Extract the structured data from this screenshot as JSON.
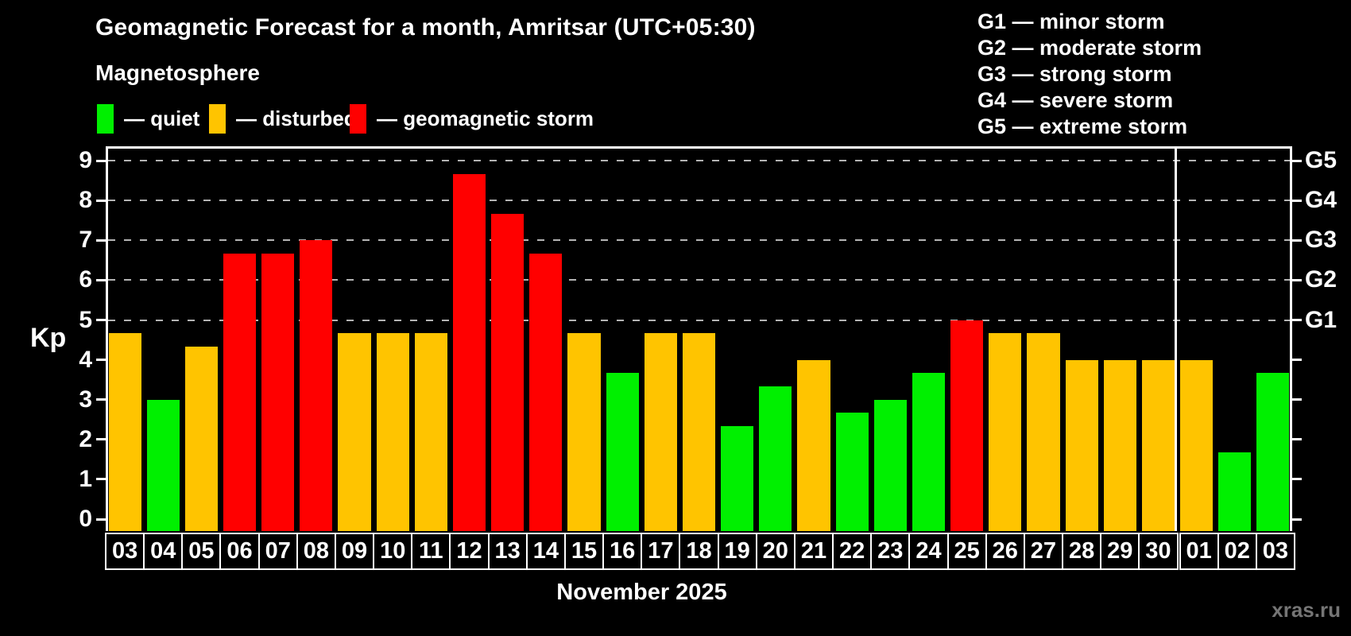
{
  "title": "Geomagnetic Forecast for a month, Amritsar (UTC+05:30)",
  "subtitle": "Magnetosphere",
  "legend": {
    "quiet": "— quiet",
    "disturbed": "— disturbed",
    "storm": "— geomagnetic storm"
  },
  "g_scale_legend": [
    "G1 — minor storm",
    "G2 — moderate storm",
    "G3 — strong storm",
    "G4 — severe storm",
    "G5 — extreme storm"
  ],
  "colors": {
    "quiet": "#00f000",
    "disturbed": "#ffc400",
    "storm": "#ff0000",
    "background": "#000000",
    "grid": "#b4b4b4",
    "axis": "#ffffff",
    "watermark": "#757575"
  },
  "axes": {
    "y_label": "Kp",
    "y_ticks": [
      0,
      1,
      2,
      3,
      4,
      5,
      6,
      7,
      8,
      9
    ],
    "right_labels": [
      {
        "label": "G1",
        "kp": 5
      },
      {
        "label": "G2",
        "kp": 6
      },
      {
        "label": "G3",
        "kp": 7
      },
      {
        "label": "G4",
        "kp": 8
      },
      {
        "label": "G5",
        "kp": 9
      }
    ],
    "x_label": "November 2025"
  },
  "watermark": "xras.ru",
  "chart_data": {
    "type": "bar",
    "title": "Geomagnetic Forecast for a month, Amritsar (UTC+05:30)",
    "xlabel": "November 2025",
    "ylabel": "Kp",
    "ylim": [
      -0.32,
      9.35
    ],
    "grid": "dashed horizontal at G-storm levels",
    "gridlines_at": [
      5,
      6,
      7,
      8,
      9
    ],
    "categories": [
      "03",
      "04",
      "05",
      "06",
      "07",
      "08",
      "09",
      "10",
      "11",
      "12",
      "13",
      "14",
      "15",
      "16",
      "17",
      "18",
      "19",
      "20",
      "21",
      "22",
      "23",
      "24",
      "25",
      "26",
      "27",
      "28",
      "29",
      "30",
      "01",
      "02",
      "03"
    ],
    "values": [
      4.67,
      3,
      4.33,
      6.67,
      6.67,
      7,
      4.67,
      4.67,
      4.67,
      8.67,
      7.67,
      6.67,
      4.67,
      3.67,
      4.67,
      4.67,
      2.33,
      3.33,
      4,
      2.67,
      3,
      3.67,
      5,
      4.67,
      4.67,
      4,
      4,
      4,
      4,
      1.67,
      3.67
    ],
    "statuses": [
      "disturbed",
      "quiet",
      "disturbed",
      "storm",
      "storm",
      "storm",
      "disturbed",
      "disturbed",
      "disturbed",
      "storm",
      "storm",
      "storm",
      "disturbed",
      "quiet",
      "disturbed",
      "disturbed",
      "quiet",
      "quiet",
      "disturbed",
      "quiet",
      "quiet",
      "quiet",
      "storm",
      "disturbed",
      "disturbed",
      "disturbed",
      "disturbed",
      "disturbed",
      "disturbed",
      "quiet",
      "quiet"
    ],
    "month_separator_after_index": 27,
    "months": {
      "november_dates": 28,
      "december_dates": 3
    }
  }
}
